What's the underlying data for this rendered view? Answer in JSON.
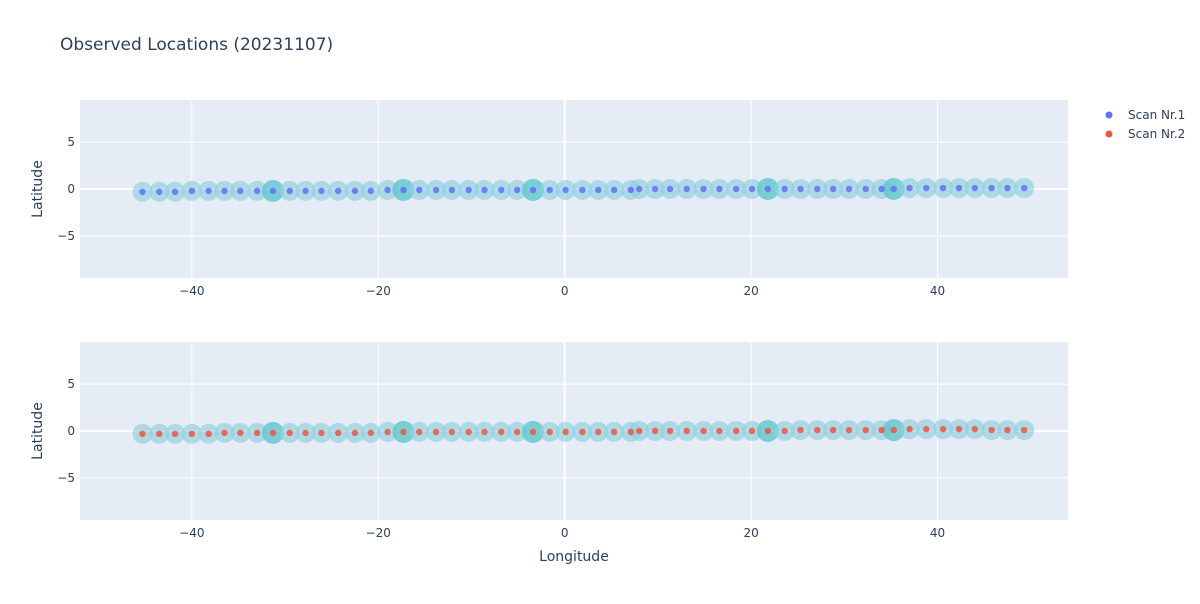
{
  "title": "Observed Locations (20231107)",
  "colors": {
    "scan1": "#636efa",
    "scan2": "#ef553b",
    "halo": "#8fd0df",
    "halo_strong": "#5ec5cc",
    "plot_bg": "#e5ecf6",
    "grid": "#ffffff",
    "text": "#2a3f5f"
  },
  "legend": {
    "placement": "top-right",
    "items": [
      {
        "label": "Scan Nr.1",
        "color_key": "scan1"
      },
      {
        "label": "Scan Nr.2",
        "color_key": "scan2"
      }
    ]
  },
  "chart_data": [
    {
      "type": "scatter",
      "xlabel": "",
      "ylabel": "Latitude",
      "xlim": [
        -52,
        54
      ],
      "ylim": [
        -9.5,
        9.5
      ],
      "x_ticks": [
        -40,
        -20,
        0,
        20,
        40
      ],
      "y_ticks": [
        -5,
        0,
        5
      ],
      "grid": true,
      "series": [
        {
          "name": "Scan Nr.1",
          "x": [
            -45.3,
            -43.5,
            -41.8,
            -40.0,
            -38.2,
            -36.5,
            -34.8,
            -33.0,
            -31.3,
            -29.5,
            -27.8,
            -26.1,
            -24.3,
            -22.5,
            -20.8,
            -19.0,
            -17.3,
            -15.6,
            -13.8,
            -12.1,
            -10.3,
            -8.6,
            -6.8,
            -5.1,
            -3.4,
            -1.6,
            0.1,
            1.9,
            3.6,
            5.3,
            7.1,
            8.0,
            9.7,
            11.3,
            13.1,
            14.9,
            16.6,
            18.4,
            20.1,
            21.8,
            23.6,
            25.3,
            27.1,
            28.8,
            30.5,
            32.3,
            34.0,
            35.3,
            37.0,
            38.8,
            40.6,
            42.3,
            44.0,
            45.8,
            47.5,
            49.3
          ],
          "y": [
            -0.3,
            -0.3,
            -0.3,
            -0.2,
            -0.2,
            -0.2,
            -0.2,
            -0.2,
            -0.2,
            -0.2,
            -0.2,
            -0.2,
            -0.2,
            -0.2,
            -0.2,
            -0.1,
            -0.1,
            -0.1,
            -0.1,
            -0.1,
            -0.1,
            -0.1,
            -0.1,
            -0.1,
            -0.1,
            -0.1,
            -0.1,
            -0.1,
            -0.1,
            -0.1,
            -0.1,
            0.0,
            0.0,
            0.0,
            0.0,
            0.0,
            0.0,
            0.0,
            0.0,
            0.0,
            0.0,
            0.0,
            0.0,
            0.0,
            0.0,
            0.0,
            0.0,
            0.0,
            0.1,
            0.1,
            0.1,
            0.1,
            0.1,
            0.1,
            0.1,
            0.1
          ]
        }
      ],
      "halo_emphasis_x": [
        -31.3,
        -17.3,
        -3.4,
        21.8,
        35.3
      ]
    },
    {
      "type": "scatter",
      "xlabel": "Longitude",
      "ylabel": "Latitude",
      "xlim": [
        -52,
        54
      ],
      "ylim": [
        -9.5,
        9.5
      ],
      "x_ticks": [
        -40,
        -20,
        0,
        20,
        40
      ],
      "y_ticks": [
        -5,
        0,
        5
      ],
      "grid": true,
      "series": [
        {
          "name": "Scan Nr.2",
          "x": [
            -45.3,
            -43.5,
            -41.8,
            -40.0,
            -38.2,
            -36.5,
            -34.8,
            -33.0,
            -31.3,
            -29.5,
            -27.8,
            -26.1,
            -24.3,
            -22.5,
            -20.8,
            -19.0,
            -17.3,
            -15.6,
            -13.8,
            -12.1,
            -10.3,
            -8.6,
            -6.8,
            -5.1,
            -3.4,
            -1.6,
            0.1,
            1.9,
            3.6,
            5.3,
            7.1,
            8.0,
            9.7,
            11.3,
            13.1,
            14.9,
            16.6,
            18.4,
            20.1,
            21.8,
            23.6,
            25.3,
            27.1,
            28.8,
            30.5,
            32.3,
            34.0,
            35.3,
            37.0,
            38.8,
            40.6,
            42.3,
            44.0,
            45.8,
            47.5,
            49.3
          ],
          "y": [
            -0.3,
            -0.3,
            -0.3,
            -0.3,
            -0.3,
            -0.2,
            -0.2,
            -0.2,
            -0.2,
            -0.2,
            -0.2,
            -0.2,
            -0.2,
            -0.2,
            -0.2,
            -0.1,
            -0.1,
            -0.1,
            -0.1,
            -0.1,
            -0.1,
            -0.1,
            -0.1,
            -0.1,
            -0.1,
            -0.1,
            -0.1,
            -0.1,
            -0.1,
            -0.1,
            -0.1,
            0.0,
            0.0,
            0.0,
            0.0,
            0.0,
            0.0,
            0.0,
            0.0,
            0.0,
            0.0,
            0.1,
            0.1,
            0.1,
            0.1,
            0.1,
            0.1,
            0.1,
            0.2,
            0.2,
            0.2,
            0.2,
            0.2,
            0.1,
            0.1,
            0.1
          ]
        }
      ],
      "halo_emphasis_x": [
        -31.3,
        -17.3,
        -3.4,
        21.8,
        35.3
      ]
    }
  ]
}
